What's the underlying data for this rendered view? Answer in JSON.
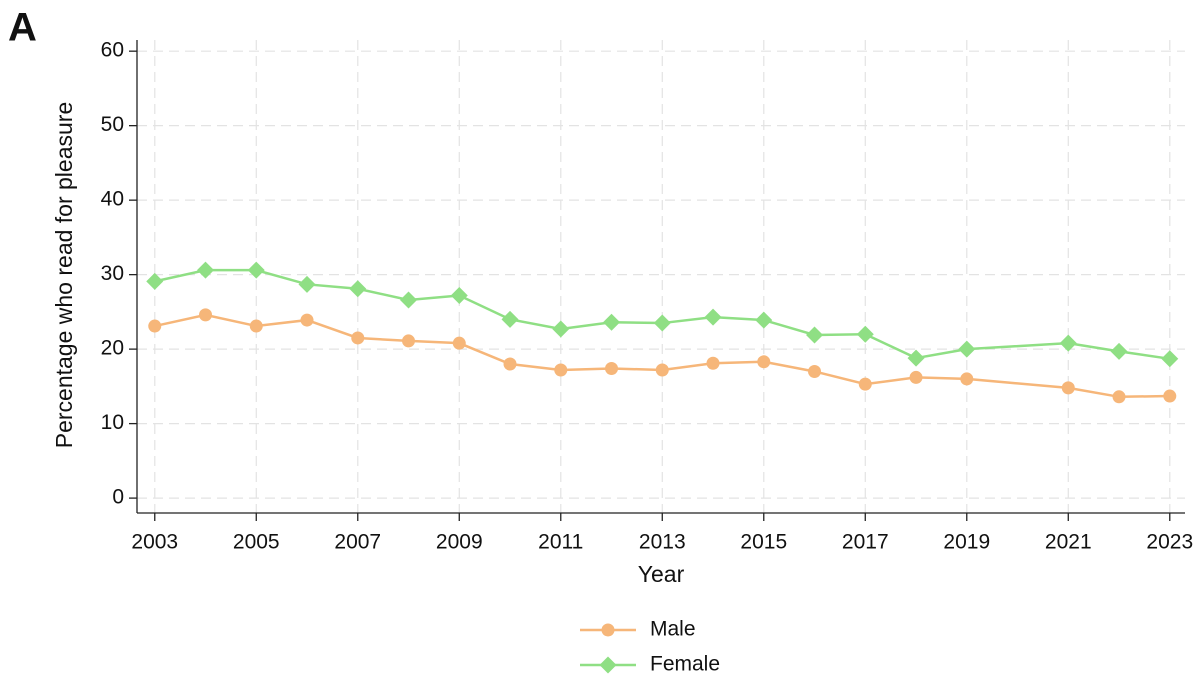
{
  "panel_label": "A",
  "chart_data": {
    "type": "line",
    "x_label": "Year",
    "y_label": "Percentage who read for pleasure",
    "x": [
      2003,
      2004,
      2005,
      2006,
      2007,
      2008,
      2009,
      2010,
      2011,
      2012,
      2013,
      2014,
      2015,
      2016,
      2017,
      2018,
      2019,
      2021,
      2022,
      2023
    ],
    "series": [
      {
        "name": "Male",
        "color": "#f6b679",
        "marker": "circle",
        "values": [
          23.1,
          24.6,
          23.1,
          23.9,
          21.5,
          21.1,
          20.8,
          18.0,
          17.2,
          17.4,
          17.2,
          18.1,
          18.3,
          17.0,
          15.3,
          16.2,
          16.0,
          14.8,
          13.6,
          13.7
        ]
      },
      {
        "name": "Female",
        "color": "#8fdf84",
        "marker": "diamond",
        "values": [
          29.1,
          30.6,
          30.6,
          28.7,
          28.1,
          26.6,
          27.2,
          24.0,
          22.7,
          23.6,
          23.5,
          24.3,
          23.9,
          21.9,
          22.0,
          18.8,
          20.0,
          20.8,
          19.7,
          18.7
        ]
      }
    ],
    "xlim": [
      2002.65,
      2023.3
    ],
    "ylim": [
      -2,
      61.5
    ],
    "xticks": [
      2003,
      2005,
      2007,
      2009,
      2011,
      2013,
      2015,
      2017,
      2019,
      2021,
      2023
    ],
    "yticks": [
      0,
      10,
      20,
      30,
      40,
      50,
      60
    ],
    "grid": true,
    "legend": "bottom"
  }
}
